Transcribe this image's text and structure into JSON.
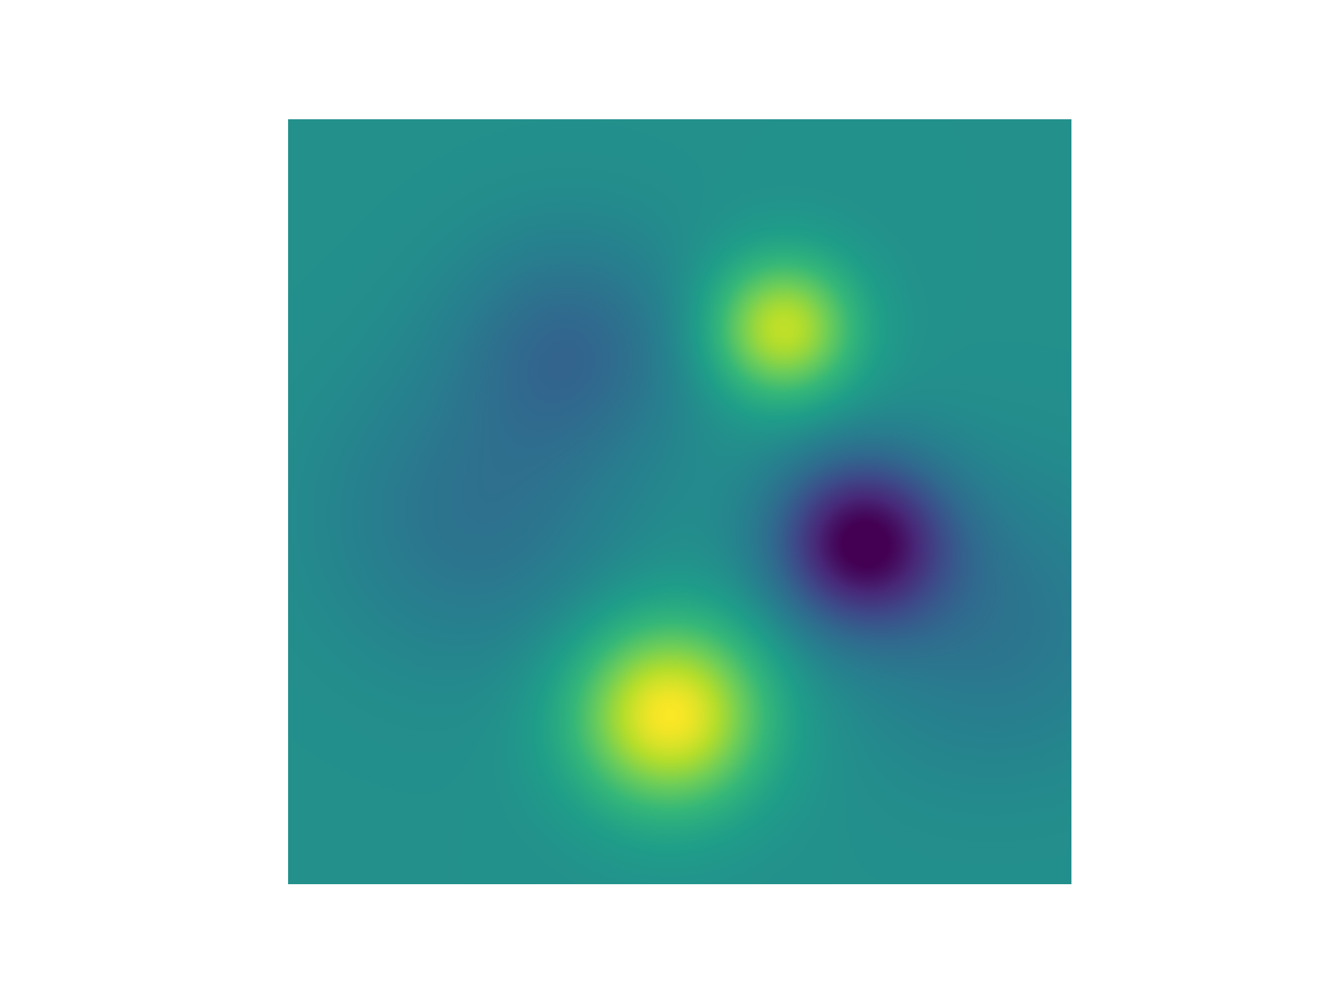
{
  "chart_data": {
    "type": "heatmap",
    "colormap": "viridis",
    "colormap_stops": [
      "#440154",
      "#482878",
      "#3e4989",
      "#31688e",
      "#26828e",
      "#1f9e89",
      "#35b779",
      "#6ece58",
      "#b5de2b",
      "#fde725"
    ],
    "x_range": [
      0,
      1
    ],
    "y_range": [
      0,
      1
    ],
    "axes_visible": false,
    "grid": false,
    "legend": "none",
    "value_range": [
      -1,
      1
    ],
    "baseline": 0.0,
    "extrema": [
      {
        "kind": "max",
        "x": 0.487,
        "y": 0.778,
        "peak": 1.0,
        "spread": 0.085
      },
      {
        "kind": "max",
        "x": 0.632,
        "y": 0.274,
        "peak": 0.82,
        "spread": 0.065
      },
      {
        "kind": "min",
        "x": 0.733,
        "y": 0.553,
        "peak": -1.0,
        "spread": 0.075
      },
      {
        "kind": "min",
        "x": 0.36,
        "y": 0.3,
        "peak": -0.32,
        "spread": 0.1
      },
      {
        "kind": "min",
        "x": 0.24,
        "y": 0.52,
        "peak": -0.24,
        "spread": 0.13
      },
      {
        "kind": "min",
        "x": 0.9,
        "y": 0.66,
        "peak": -0.22,
        "spread": 0.13
      }
    ]
  }
}
